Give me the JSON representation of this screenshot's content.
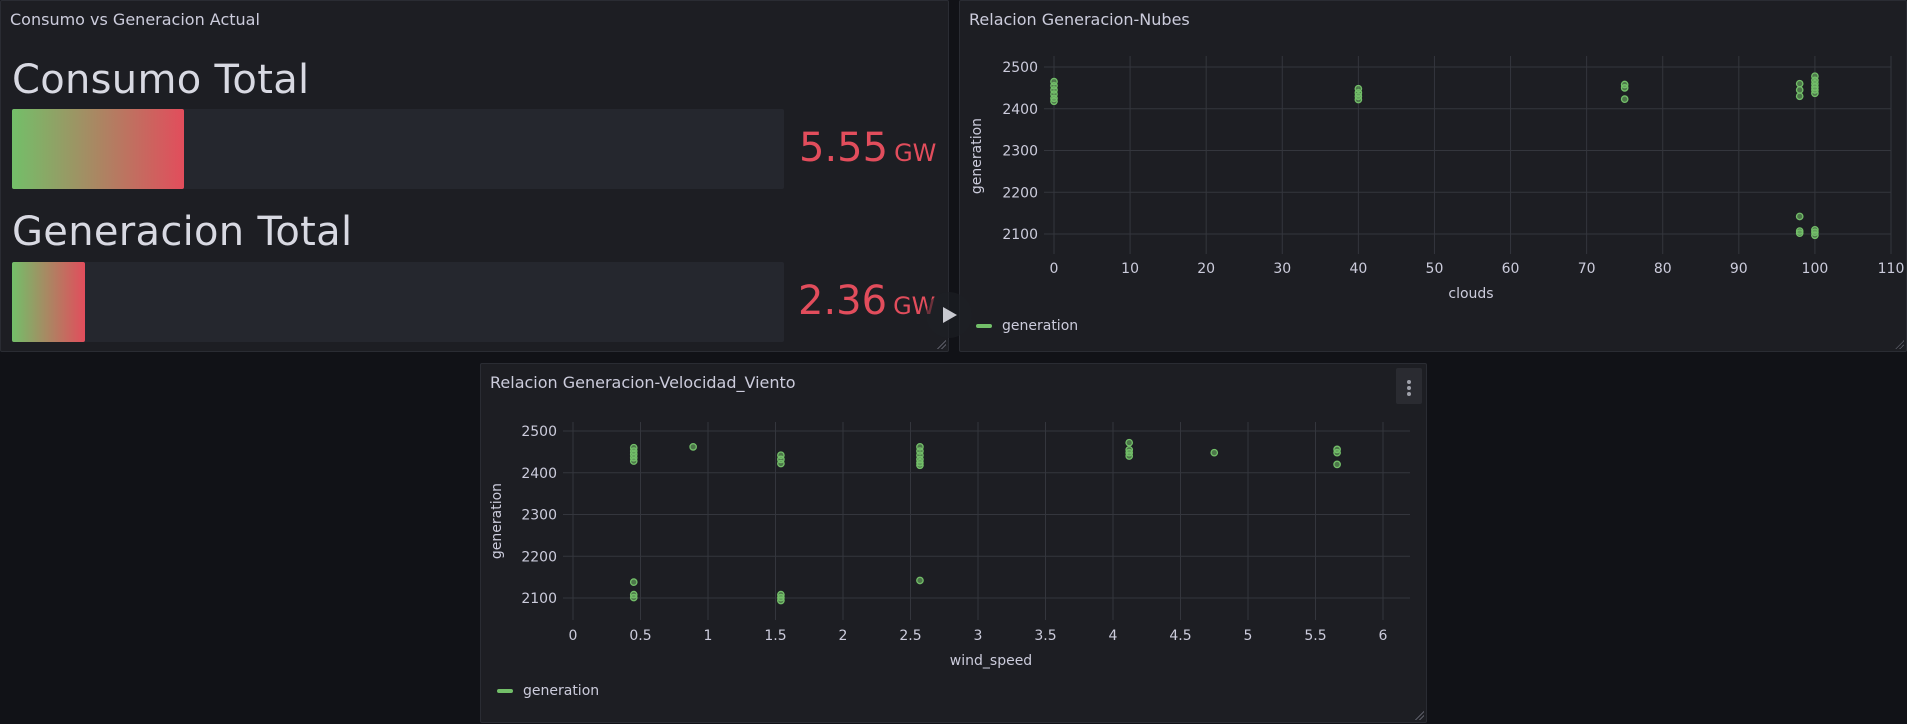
{
  "panels": {
    "gauge": {
      "title": "Consumo vs Generacion Actual",
      "bars": [
        {
          "label": "Consumo Total",
          "value": "5.55",
          "unit": "GW",
          "fill_pct": 22.3
        },
        {
          "label": "Generacion Total",
          "value": "2.36",
          "unit": "GW",
          "fill_pct": 9.5
        }
      ],
      "colors": {
        "gradient_start": "#73bf69",
        "gradient_end": "#e24d5c",
        "value_text": "#e24d5c"
      }
    },
    "clouds": {
      "title": "Relacion Generacion-Nubes",
      "legend": "generation"
    },
    "wind": {
      "title": "Relacion Generacion-Velocidad_Viento",
      "legend": "generation"
    }
  },
  "chart_data": [
    {
      "type": "scatter",
      "title": "Relacion Generacion-Nubes",
      "xlabel": "clouds",
      "ylabel": "generation",
      "xlim": [
        0,
        110
      ],
      "ylim": [
        2040,
        2500
      ],
      "xticks": [
        0,
        10,
        20,
        30,
        40,
        50,
        60,
        70,
        80,
        90,
        100,
        110
      ],
      "yticks": [
        2100,
        2200,
        2300,
        2400,
        2500
      ],
      "grid": true,
      "legend": {
        "entries": [
          "generation"
        ],
        "position": "bottom-left"
      },
      "color": "#73bf69",
      "series": [
        {
          "name": "generation",
          "points": [
            [
              0,
              2465
            ],
            [
              0,
              2455
            ],
            [
              0,
              2445
            ],
            [
              0,
              2435
            ],
            [
              0,
              2425
            ],
            [
              0,
              2418
            ],
            [
              40,
              2448
            ],
            [
              40,
              2438
            ],
            [
              40,
              2430
            ],
            [
              40,
              2422
            ],
            [
              75,
              2458
            ],
            [
              75,
              2450
            ],
            [
              75,
              2423
            ],
            [
              98,
              2460
            ],
            [
              98,
              2445
            ],
            [
              98,
              2430
            ],
            [
              100,
              2478
            ],
            [
              100,
              2468
            ],
            [
              100,
              2460
            ],
            [
              100,
              2452
            ],
            [
              100,
              2445
            ],
            [
              100,
              2437
            ],
            [
              98,
              2142
            ],
            [
              98,
              2107
            ],
            [
              98,
              2102
            ],
            [
              100,
              2110
            ],
            [
              100,
              2104
            ],
            [
              100,
              2097
            ]
          ]
        }
      ]
    },
    {
      "type": "scatter",
      "title": "Relacion Generacion-Velocidad_Viento",
      "xlabel": "wind_speed",
      "ylabel": "generation",
      "xlim": [
        0,
        6.2
      ],
      "ylim": [
        2040,
        2500
      ],
      "xticks": [
        0,
        0.5,
        1,
        1.5,
        2,
        2.5,
        3,
        3.5,
        4,
        4.5,
        5,
        5.5,
        6
      ],
      "yticks": [
        2100,
        2200,
        2300,
        2400,
        2500
      ],
      "grid": true,
      "legend": {
        "entries": [
          "generation"
        ],
        "position": "bottom-left"
      },
      "color": "#73bf69",
      "series": [
        {
          "name": "generation",
          "points": [
            [
              0.45,
              2460
            ],
            [
              0.45,
              2452
            ],
            [
              0.45,
              2444
            ],
            [
              0.45,
              2436
            ],
            [
              0.45,
              2428
            ],
            [
              0.89,
              2462
            ],
            [
              1.54,
              2442
            ],
            [
              1.54,
              2432
            ],
            [
              1.54,
              2422
            ],
            [
              2.57,
              2462
            ],
            [
              2.57,
              2452
            ],
            [
              2.57,
              2442
            ],
            [
              2.57,
              2432
            ],
            [
              2.57,
              2424
            ],
            [
              2.57,
              2418
            ],
            [
              4.12,
              2472
            ],
            [
              4.12,
              2455
            ],
            [
              4.12,
              2448
            ],
            [
              4.12,
              2440
            ],
            [
              4.75,
              2448
            ],
            [
              5.66,
              2456
            ],
            [
              5.66,
              2448
            ],
            [
              5.66,
              2420
            ],
            [
              0.45,
              2138
            ],
            [
              0.45,
              2108
            ],
            [
              0.45,
              2101
            ],
            [
              1.54,
              2108
            ],
            [
              1.54,
              2101
            ],
            [
              1.54,
              2094
            ],
            [
              2.57,
              2142
            ]
          ]
        }
      ]
    }
  ]
}
